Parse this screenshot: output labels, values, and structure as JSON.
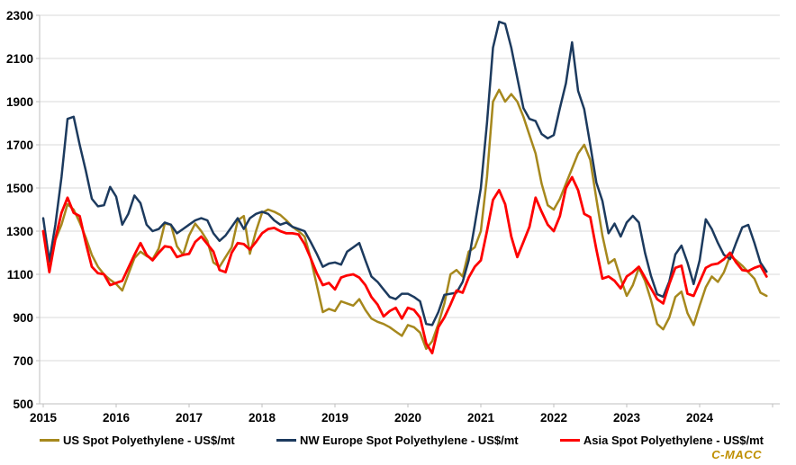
{
  "watermark": {
    "text": "C-MACC",
    "color": "#BF8F00"
  },
  "axes": {
    "y_tick_labels": [
      "500",
      "700",
      "900",
      "1100",
      "1300",
      "1500",
      "1700",
      "1900",
      "2100",
      "2300"
    ],
    "x_tick_labels": [
      "2015",
      "2016",
      "2017",
      "2018",
      "2019",
      "2020",
      "2021",
      "2022",
      "2023",
      "2024"
    ]
  },
  "colors": {
    "gridline": "#D9D9D9",
    "axis": "#BFBFBF",
    "background": "#FFFFFF"
  },
  "chart_data": {
    "type": "line",
    "title": "",
    "xlabel": "",
    "ylabel": "",
    "ylim": [
      500,
      2300
    ],
    "y_ticks": [
      500,
      700,
      900,
      1100,
      1300,
      1500,
      1700,
      1900,
      2100,
      2300
    ],
    "x_years": [
      2015,
      2016,
      2017,
      2018,
      2019,
      2020,
      2021,
      2022,
      2023,
      2024
    ],
    "frequency": "monthly",
    "x_start_year": 2015,
    "grid": "horizontal",
    "legend_position": "bottom",
    "series": [
      {
        "name": "US Spot Polyethylene - US$/mt",
        "color": "#A6881D",
        "values": [
          1300,
          1130,
          1260,
          1330,
          1425,
          1400,
          1340,
          1270,
          1190,
          1135,
          1100,
          1075,
          1055,
          1025,
          1100,
          1175,
          1205,
          1185,
          1170,
          1220,
          1335,
          1330,
          1230,
          1190,
          1280,
          1335,
          1300,
          1255,
          1155,
          1135,
          1180,
          1225,
          1350,
          1370,
          1195,
          1300,
          1385,
          1400,
          1390,
          1375,
          1350,
          1320,
          1300,
          1275,
          1175,
          1050,
          925,
          940,
          930,
          975,
          965,
          955,
          985,
          935,
          895,
          880,
          870,
          855,
          835,
          815,
          865,
          855,
          830,
          755,
          790,
          870,
          965,
          1100,
          1120,
          1090,
          1205,
          1225,
          1300,
          1550,
          1900,
          1955,
          1900,
          1935,
          1900,
          1830,
          1745,
          1660,
          1520,
          1420,
          1400,
          1450,
          1520,
          1590,
          1660,
          1700,
          1630,
          1450,
          1280,
          1150,
          1170,
          1080,
          1000,
          1050,
          1130,
          1070,
          980,
          870,
          845,
          900,
          995,
          1020,
          920,
          865,
          955,
          1040,
          1090,
          1065,
          1110,
          1185,
          1165,
          1140,
          1110,
          1080,
          1015,
          1000
        ]
      },
      {
        "name": "NW Europe Spot Polyethylene - US$/mt",
        "color": "#1C3A5E",
        "values": [
          1360,
          1160,
          1330,
          1550,
          1820,
          1830,
          1700,
          1580,
          1450,
          1415,
          1420,
          1505,
          1460,
          1330,
          1380,
          1465,
          1430,
          1330,
          1300,
          1310,
          1340,
          1330,
          1290,
          1310,
          1330,
          1350,
          1360,
          1350,
          1290,
          1255,
          1280,
          1320,
          1360,
          1310,
          1360,
          1380,
          1390,
          1380,
          1350,
          1330,
          1340,
          1320,
          1310,
          1300,
          1250,
          1195,
          1135,
          1150,
          1155,
          1145,
          1205,
          1225,
          1245,
          1165,
          1090,
          1065,
          1030,
          995,
          985,
          1010,
          1010,
          995,
          975,
          870,
          865,
          925,
          1005,
          1010,
          1015,
          1065,
          1165,
          1330,
          1500,
          1800,
          2150,
          2270,
          2260,
          2150,
          2010,
          1870,
          1820,
          1810,
          1750,
          1730,
          1745,
          1870,
          1985,
          2175,
          1950,
          1865,
          1700,
          1525,
          1440,
          1290,
          1335,
          1275,
          1340,
          1371,
          1340,
          1200,
          1092,
          1008,
          996,
          1067,
          1192,
          1233,
          1154,
          1055,
          1165,
          1355,
          1310,
          1245,
          1190,
          1171,
          1246,
          1317,
          1329,
          1246,
          1154,
          1112
        ]
      },
      {
        "name": "Asia Spot Polyethylene - US$/mt",
        "color": "#FE0000",
        "values": [
          1300,
          1110,
          1265,
          1385,
          1455,
          1385,
          1370,
          1245,
          1135,
          1105,
          1100,
          1050,
          1060,
          1070,
          1130,
          1190,
          1245,
          1190,
          1165,
          1200,
          1230,
          1225,
          1180,
          1190,
          1195,
          1250,
          1275,
          1240,
          1205,
          1120,
          1110,
          1200,
          1245,
          1240,
          1215,
          1250,
          1290,
          1310,
          1315,
          1300,
          1290,
          1290,
          1285,
          1240,
          1175,
          1105,
          1050,
          1060,
          1030,
          1085,
          1095,
          1100,
          1085,
          1050,
          995,
          960,
          905,
          930,
          945,
          895,
          945,
          935,
          900,
          780,
          735,
          855,
          900,
          960,
          1025,
          1015,
          1085,
          1135,
          1165,
          1300,
          1445,
          1490,
          1425,
          1275,
          1180,
          1250,
          1320,
          1455,
          1390,
          1330,
          1300,
          1370,
          1500,
          1550,
          1490,
          1380,
          1365,
          1215,
          1080,
          1090,
          1070,
          1035,
          1090,
          1110,
          1135,
          1085,
          1035,
          985,
          965,
          1055,
          1130,
          1140,
          1010,
          1000,
          1065,
          1130,
          1145,
          1150,
          1170,
          1200,
          1155,
          1120,
          1115,
          1130,
          1140,
          1090
        ]
      }
    ]
  }
}
